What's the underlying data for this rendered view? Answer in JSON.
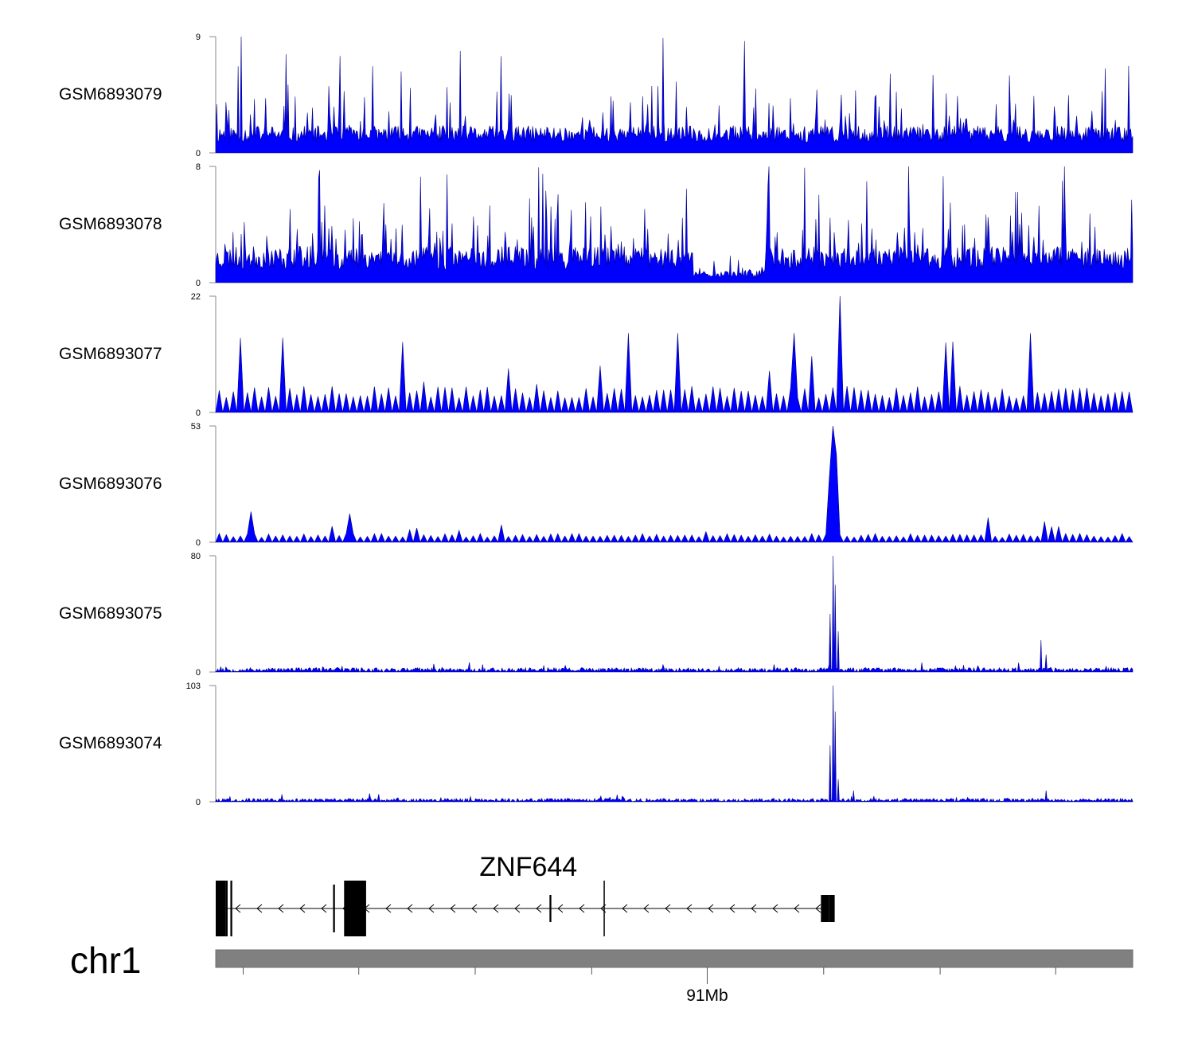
{
  "chart_data": {
    "type": "area",
    "color": "#0000ff",
    "outline_color": "#00008b",
    "tracks": [
      {
        "name": "GSM6893079",
        "ylim": [
          0,
          9
        ],
        "baseline": 0.8,
        "noise": 1.3,
        "spike_rate": 0.12,
        "spike_max": 7,
        "peaks": [
          [
            0.028,
            9
          ],
          [
            0.135,
            7.5
          ],
          [
            0.311,
            7.5
          ],
          [
            0.865,
            6
          ]
        ],
        "seed": 11
      },
      {
        "name": "GSM6893078",
        "ylim": [
          0,
          8
        ],
        "baseline": 0.9,
        "noise": 1.6,
        "spike_rate": 0.14,
        "spike_max": 6.5,
        "gaps": [
          [
            0.52,
            0.6
          ]
        ],
        "peaks": [
          [
            0.755,
            8
          ]
        ],
        "seed": 23
      },
      {
        "name": "GSM6893077",
        "ylim": [
          0,
          22
        ],
        "baseline": 0,
        "noise": 5,
        "spike_rate": 0.1,
        "spike_max": 12,
        "triangular": true,
        "peaks": [
          [
            0.451,
            15
          ],
          [
            0.504,
            15
          ],
          [
            0.63,
            15
          ],
          [
            0.682,
            22
          ],
          [
            0.89,
            15
          ]
        ],
        "seed": 37
      },
      {
        "name": "GSM6893076",
        "ylim": [
          0,
          53
        ],
        "baseline": 0,
        "noise": 4,
        "spike_rate": 0.06,
        "spike_max": 8,
        "triangular": true,
        "peaks": [
          [
            0.673,
            53
          ],
          [
            0.676,
            40
          ],
          [
            0.67,
            30
          ],
          [
            0.038,
            14
          ],
          [
            0.147,
            13
          ]
        ],
        "seed": 41
      },
      {
        "name": "GSM6893075",
        "ylim": [
          0,
          80
        ],
        "baseline": 0,
        "noise": 3,
        "spike_rate": 0.05,
        "spike_max": 6,
        "peaks": [
          [
            0.673,
            80
          ],
          [
            0.676,
            60
          ],
          [
            0.67,
            40
          ],
          [
            0.679,
            28
          ],
          [
            0.9,
            22
          ],
          [
            0.905,
            12
          ]
        ],
        "seed": 53
      },
      {
        "name": "GSM6893074",
        "ylim": [
          0,
          103
        ],
        "baseline": 0,
        "noise": 3,
        "spike_rate": 0.03,
        "spike_max": 6,
        "peaks": [
          [
            0.673,
            103
          ],
          [
            0.676,
            80
          ],
          [
            0.67,
            50
          ],
          [
            0.679,
            20
          ],
          [
            0.695,
            10
          ],
          [
            0.905,
            10
          ]
        ],
        "seed": 67
      }
    ],
    "gene": {
      "name": "ZNF644",
      "strand": "-",
      "start_frac": 0.0,
      "end_frac": 0.675,
      "exons": [
        [
          0.0,
          0.011,
          70
        ],
        [
          0.011,
          0.013,
          70
        ],
        [
          0.016,
          0.018,
          70
        ],
        [
          0.128,
          0.13,
          60
        ],
        [
          0.14,
          0.164,
          70
        ],
        [
          0.364,
          0.366,
          34
        ],
        [
          0.423,
          0.424,
          70
        ],
        [
          0.66,
          0.669,
          34
        ],
        [
          0.669,
          0.675,
          34
        ]
      ]
    },
    "chromosome": "chr1",
    "axis": {
      "tick_fracs": [
        0.03,
        0.156,
        0.283,
        0.41,
        0.536,
        0.663,
        0.79,
        0.916
      ],
      "labeled_tick": {
        "frac": 0.536,
        "label": "91Mb"
      }
    }
  }
}
